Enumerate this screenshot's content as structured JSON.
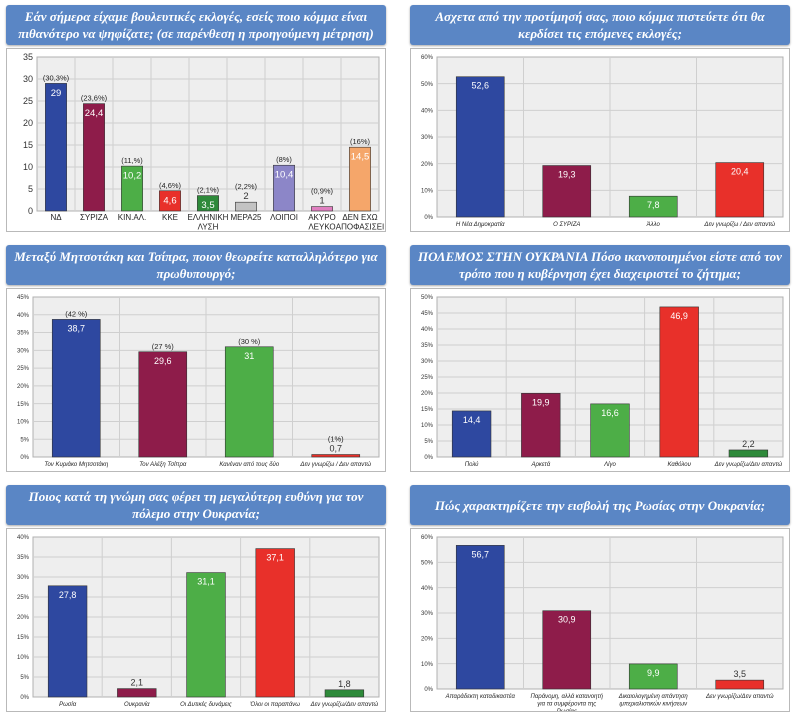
{
  "colors": {
    "title_bg": "#5a86c5",
    "plot_bg": "#eeeeee",
    "grid": "#cfcfcf"
  },
  "chart_data": [
    {
      "id": "c1",
      "type": "bar",
      "title": "Εάν σήμερα είχαμε βουλευτικές εκλογές, εσείς ποιο κόμμα είναι πιθανότερο να ψηφίζατε; (σε παρένθεση η προηγούμενη μέτρηση)",
      "ylim": [
        0,
        35
      ],
      "yticks": [
        "0",
        "5",
        "10",
        "15",
        "20",
        "25",
        "30",
        "35"
      ],
      "categories": [
        "ΝΔ",
        "ΣΥΡΙΖΑ",
        "ΚΙΝ.ΑΛ.",
        "ΚΚΕ",
        "ΕΛΛΗΝΙΚΗ ΛΥΣΗ",
        "ΜΕΡΑ25",
        "ΛΟΙΠΟΙ",
        "ΑΚΥΡΟ ΛΕΥΚΟ",
        "ΔΕΝ ΕΧΩ ΑΠΟΦΑΣΙΣΕΙ"
      ],
      "values": [
        29,
        24.4,
        10.2,
        4.6,
        3.5,
        2,
        10.4,
        1,
        14.5
      ],
      "value_labels": [
        "29",
        "24,4",
        "10,2",
        "4,6",
        "3,5",
        "2",
        "10,4",
        "1",
        "14,5"
      ],
      "previous_labels": [
        "(30,3%)",
        "(23,6%)",
        "(11,%)",
        "(4,6%)",
        "(2,1%)",
        "(2,2%)",
        "(8%)",
        "(0,9%)",
        "(16%)"
      ],
      "colors": [
        "#2e48a0",
        "#8e1c4a",
        "#4dae47",
        "#e8302a",
        "#2e8a3a",
        "#c3c3c3",
        "#8c86c8",
        "#e07fc0",
        "#f5a66a"
      ]
    },
    {
      "id": "c2",
      "type": "bar",
      "title": "Ασχετα από την προτίμησή σας, ποιο κόμμα πιστεύετε ότι θα κερδίσει τις επόμενες εκλογές;",
      "ylim": [
        0,
        60
      ],
      "yticks": [
        "0%",
        "10%",
        "20%",
        "30%",
        "40%",
        "50%",
        "60%"
      ],
      "categories": [
        "Η Νέα Δημοκρατία",
        "Ο ΣΥΡΙΖΑ",
        "Άλλο",
        "Δεν γνωρίζω / Δεν απαντώ"
      ],
      "values": [
        52.6,
        19.3,
        7.8,
        20.4
      ],
      "value_labels": [
        "52,6",
        "19,3",
        "7,8",
        "20,4"
      ],
      "colors": [
        "#2e48a0",
        "#8e1c4a",
        "#4dae47",
        "#e8302a"
      ]
    },
    {
      "id": "c3",
      "type": "bar",
      "title": "Μεταξύ Μητσοτάκη και Τσίπρα, ποιον θεωρείτε καταλληλότερο για πρωθυπουργό;",
      "ylim": [
        0,
        45
      ],
      "yticks": [
        "0%",
        "5%",
        "10%",
        "15%",
        "20%",
        "25%",
        "30%",
        "35%",
        "40%",
        "45%"
      ],
      "categories": [
        "Τον Κυριάκο Μητσοτάκη",
        "Τον Αλέξη Τσίπρα",
        "Κανέναν από τους δύο",
        "Δεν γνωρίζω / Δεν απαντώ"
      ],
      "values": [
        38.7,
        29.6,
        31,
        0.7
      ],
      "value_labels": [
        "38,7",
        "29,6",
        "31",
        "0,7"
      ],
      "previous_labels": [
        "(42 %)",
        "(27 %)",
        "(30 %)",
        "(1%)"
      ],
      "colors": [
        "#2e48a0",
        "#8e1c4a",
        "#4dae47",
        "#e8302a"
      ]
    },
    {
      "id": "c4",
      "type": "bar",
      "title": "ΠΟΛΕΜΟΣ ΣΤΗΝ ΟΥΚΡΑΝΙΑ Πόσο ικανοποιημένοι είστε από τον τρόπο που η κυβέρνηση έχει διαχειριστεί το ζήτημα;",
      "ylim": [
        0,
        50
      ],
      "yticks": [
        "0%",
        "5%",
        "10%",
        "15%",
        "20%",
        "25%",
        "30%",
        "35%",
        "40%",
        "45%",
        "50%"
      ],
      "categories": [
        "Πολύ",
        "Αρκετά",
        "Λίγο",
        "Καθόλου",
        "Δεν γνωρίζω/Δεν απαντώ"
      ],
      "values": [
        14.4,
        19.9,
        16.6,
        46.9,
        2.2
      ],
      "value_labels": [
        "14,4",
        "19,9",
        "16,6",
        "46,9",
        "2,2"
      ],
      "colors": [
        "#2e48a0",
        "#8e1c4a",
        "#4dae47",
        "#e8302a",
        "#2e8a3a"
      ]
    },
    {
      "id": "c5",
      "type": "bar",
      "title": "Ποιος κατά τη γνώμη σας φέρει τη μεγαλύτερη ευθύνη για τον πόλεμο στην Ουκρανία;",
      "ylim": [
        0,
        40
      ],
      "yticks": [
        "0%",
        "5%",
        "10%",
        "15%",
        "20%",
        "25%",
        "30%",
        "35%",
        "40%"
      ],
      "categories": [
        "Ρωσία",
        "Ουκρανία",
        "Οι Δυτικές δυνάμεις",
        "Όλοι οι παραπάνω",
        "Δεν γνωρίζω/Δεν απαντώ"
      ],
      "values": [
        27.8,
        2.1,
        31.1,
        37.1,
        1.8
      ],
      "value_labels": [
        "27,8",
        "2,1",
        "31,1",
        "37,1",
        "1,8"
      ],
      "colors": [
        "#2e48a0",
        "#8e1c4a",
        "#4dae47",
        "#e8302a",
        "#2e8a3a"
      ]
    },
    {
      "id": "c6",
      "type": "bar",
      "title": "Πώς χαρακτηρίζετε την εισβολή της Ρωσίας στην Ουκρανία;",
      "ylim": [
        0,
        60
      ],
      "yticks": [
        "0%",
        "10%",
        "20%",
        "30%",
        "40%",
        "50%",
        "60%"
      ],
      "categories": [
        "Απαράδεκτη καταδικαστέα",
        "Παράνομη, αλλά κατανοητή για τα συμφέροντα της Ρωσίας",
        "Δικαιολογημένη απάντηση ιμπεριαλιστικών κινήσεων",
        "Δεν γνωρίζω/Δεν απαντώ"
      ],
      "values": [
        56.7,
        30.9,
        9.9,
        3.5
      ],
      "value_labels": [
        "56,7",
        "30,9",
        "9,9",
        "3,5"
      ],
      "colors": [
        "#2e48a0",
        "#8e1c4a",
        "#4dae47",
        "#e8302a"
      ]
    }
  ]
}
